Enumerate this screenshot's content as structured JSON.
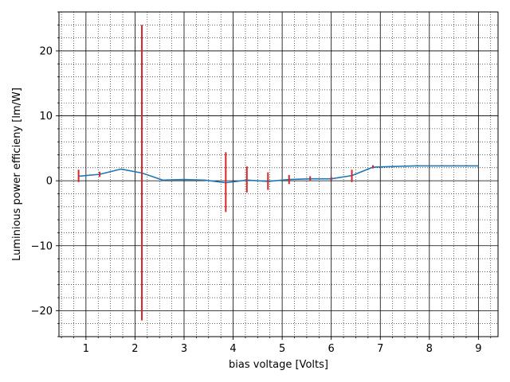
{
  "chart_data": {
    "type": "line",
    "title": "",
    "xlabel": "bias voltage [Volts]",
    "ylabel": "Luminious power efficieny [lm/W]",
    "xlim": [
      0.45,
      9.4
    ],
    "ylim": [
      -24,
      26
    ],
    "x_major_ticks": [
      1,
      2,
      3,
      4,
      5,
      6,
      7,
      8,
      9
    ],
    "y_major_ticks": [
      -20,
      -10,
      0,
      10,
      20
    ],
    "x_minor_step": 0.25,
    "y_minor_step": 2,
    "grid": true,
    "line_color": "#1f77b4",
    "errorbar_color": "#d62728",
    "series": [
      {
        "x": [
          0.85,
          1.28,
          1.71,
          2.14,
          2.57,
          3.0,
          3.42,
          3.85,
          4.28,
          4.71,
          5.14,
          5.57,
          6.0,
          6.42,
          6.85,
          7.28,
          7.71,
          8.14,
          8.57,
          9.0
        ],
        "values": [
          0.7,
          1.0,
          1.8,
          1.2,
          0.1,
          0.2,
          0.1,
          -0.3,
          0.1,
          -0.1,
          0.2,
          0.3,
          0.3,
          0.8,
          2.1,
          2.2,
          2.3,
          2.3,
          2.3,
          2.3
        ]
      }
    ],
    "error_bars": [
      {
        "x": 0.85,
        "low": -0.2,
        "high": 1.7
      },
      {
        "x": 1.28,
        "low": 0.6,
        "high": 1.4
      },
      {
        "x": 2.14,
        "low": -21.5,
        "high": 24.0
      },
      {
        "x": 3.85,
        "low": -4.8,
        "high": 4.4
      },
      {
        "x": 4.28,
        "low": -1.8,
        "high": 2.2
      },
      {
        "x": 4.71,
        "low": -1.4,
        "high": 1.3
      },
      {
        "x": 5.14,
        "low": -0.5,
        "high": 0.9
      },
      {
        "x": 5.57,
        "low": 0.0,
        "high": 0.7
      },
      {
        "x": 6.0,
        "low": 0.1,
        "high": 0.6
      },
      {
        "x": 6.42,
        "low": -0.2,
        "high": 1.7
      },
      {
        "x": 6.85,
        "low": 1.9,
        "high": 2.4
      }
    ]
  }
}
